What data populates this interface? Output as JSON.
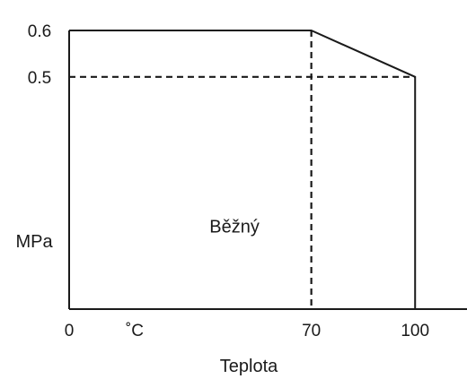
{
  "chart_data": {
    "type": "line",
    "xlabel": "Teplota",
    "xunit": "˚C",
    "ylabel": "MPa",
    "x_ticks": [
      {
        "value": 0,
        "label": "0"
      },
      {
        "value": 70,
        "label": "70"
      },
      {
        "value": 100,
        "label": "100"
      }
    ],
    "y_ticks": [
      {
        "value": 0.5,
        "label": "0.5"
      },
      {
        "value": 0.6,
        "label": "0.6"
      }
    ],
    "series": [
      {
        "x": [
          0,
          70,
          100,
          100
        ],
        "y": [
          0.6,
          0.6,
          0.5,
          0
        ]
      }
    ],
    "guides": [
      {
        "x": [
          0,
          100
        ],
        "y": [
          0.5,
          0.5
        ]
      },
      {
        "x": [
          70,
          70
        ],
        "y": [
          0.6,
          0
        ]
      }
    ],
    "region_label": {
      "text": "Běžný",
      "x": 40,
      "y": 0.2
    },
    "xlim": [
      0,
      115
    ],
    "ylim": [
      0,
      0.6
    ],
    "grid": false,
    "colors": {
      "line": "#1a1a1a",
      "guide": "#1a1a1a"
    }
  }
}
